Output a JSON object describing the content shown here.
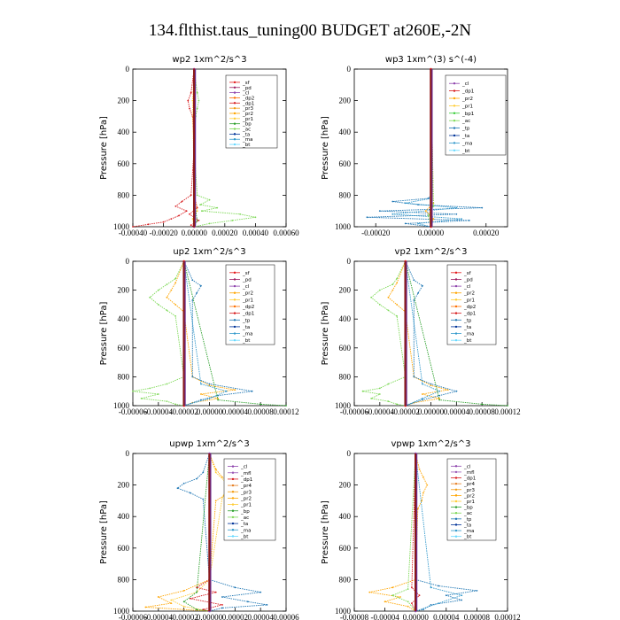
{
  "figure": {
    "title": "134.flthist.taus_tuning00  BUDGET at260E,-2N"
  },
  "colors": {
    "sf": "#e41a1c",
    "pd": "#9e1f63",
    "cl": "#8e44ad",
    "mfl": "#9b59b6",
    "dp1": "#d7191c",
    "dp2": "#ff6f00",
    "pr1": "#ffcc33",
    "pr2": "#ffa500",
    "pr3": "#f39c12",
    "pr4": "#e67e22",
    "bp": "#2ca02c",
    "bp1": "#33cc33",
    "ac": "#7ed957",
    "tp": "#1f77b4",
    "ta": "#003399",
    "ma": "#3399cc",
    "bt": "#66d9ff"
  },
  "chart_data": [
    {
      "type": "line",
      "title": "wp2   1xm^2/s^3",
      "ylabel": "Pressure [hPa]",
      "xlim": [
        -0.0004,
        0.0006
      ],
      "ylim": [
        1000,
        0
      ],
      "xticks": [
        "-0.00040",
        "-0.00020",
        "0.00000",
        "0.00020",
        "0.00040",
        "0.00060"
      ],
      "yticks": [
        "0",
        "200",
        "400",
        "600",
        "800",
        "1000"
      ],
      "legend": [
        "_sf",
        "_pd",
        "_cl",
        "_dp2",
        "_dp1",
        "_pr3",
        "_pr2",
        "_pr1",
        "_bp",
        "_ac",
        "_ta",
        "_ma",
        "_bt"
      ],
      "legend_position": "top-right",
      "series": [
        {
          "key": "ac",
          "p": [
            0,
            150,
            200,
            250,
            300,
            500,
            800,
            830,
            860,
            880,
            900,
            920,
            940,
            960,
            980,
            1000
          ],
          "v": [
            0,
            2e-05,
            3e-05,
            2e-05,
            1e-05,
            0,
            2e-05,
            0.0001,
            4e-05,
            0.00015,
            5e-05,
            0.0003,
            0.0004,
            0.00025,
            0.0001,
            0
          ]
        },
        {
          "key": "dp1",
          "p": [
            0,
            150,
            200,
            250,
            300,
            500,
            800,
            840,
            870,
            900,
            930,
            950,
            970,
            985,
            1000
          ],
          "v": [
            0,
            -2e-05,
            -4e-05,
            -3e-05,
            -1e-05,
            0,
            -2e-05,
            -8e-05,
            -0.00012,
            -5e-05,
            -0.0001,
            -0.00015,
            -0.0002,
            -0.0003,
            -0.0004
          ]
        },
        {
          "key": "sf",
          "p": [
            0,
            800,
            880,
            920,
            960,
            990,
            1000
          ],
          "v": [
            0,
            0,
            2e-05,
            -3e-05,
            3e-05,
            -2e-05,
            0
          ]
        },
        {
          "key": "pr1",
          "p": [
            0,
            200,
            800,
            900,
            950,
            1000
          ],
          "v": [
            0,
            -1e-05,
            0,
            2e-05,
            -1e-05,
            0
          ]
        },
        {
          "key": "bp",
          "p": [
            0,
            800,
            900,
            960,
            1000
          ],
          "v": [
            0,
            0,
            1e-05,
            2e-05,
            0
          ]
        },
        {
          "key": "pd",
          "p": [
            0,
            1000
          ],
          "v": [
            0,
            0
          ]
        }
      ]
    },
    {
      "type": "line",
      "title": "wp3   1xm^(3) s^(-4)",
      "ylabel": "Pressure [hPa]",
      "xlim": [
        -0.0003,
        0.0003
      ],
      "ylim": [
        1000,
        0
      ],
      "xticks": [
        "-0.00020",
        "0.00000",
        "0.00020"
      ],
      "yticks": [
        "0",
        "200",
        "400",
        "600",
        "800",
        "1000"
      ],
      "legend": [
        "_cl",
        "_dp1",
        "_pr2",
        "_pr1",
        "_bp1",
        "_ac",
        "_tp",
        "_ta",
        "_ma",
        "_bt"
      ],
      "legend_position": "top-right",
      "series": [
        {
          "key": "tp",
          "p": [
            0,
            800,
            820,
            840,
            860,
            880,
            900,
            920,
            940,
            960,
            980,
            1000
          ],
          "v": [
            0,
            0,
            -1e-05,
            -0.00015,
            -5e-05,
            0.0002,
            -0.0002,
            0.0001,
            -0.00025,
            0.00015,
            -0.0001,
            0
          ]
        },
        {
          "key": "ma",
          "p": [
            0,
            820,
            850,
            880,
            920,
            950,
            980,
            1000
          ],
          "v": [
            0,
            0,
            -0.0001,
            0.0001,
            -0.00015,
            0.00012,
            -5e-05,
            0
          ]
        },
        {
          "key": "pr2",
          "p": [
            0,
            850,
            900,
            950,
            1000
          ],
          "v": [
            0,
            1e-05,
            -2e-05,
            1e-05,
            0
          ]
        },
        {
          "key": "ac",
          "p": [
            0,
            870,
            930,
            1000
          ],
          "v": [
            0,
            1e-05,
            -1e-05,
            0
          ]
        },
        {
          "key": "dp1",
          "p": [
            0,
            1000
          ],
          "v": [
            0,
            0
          ]
        }
      ]
    },
    {
      "type": "line",
      "title": "up2   1xm^2/s^3",
      "ylabel": "Pressure [hPa]",
      "xlim": [
        -6e-05,
        0.00012
      ],
      "ylim": [
        1000,
        0
      ],
      "xticks": [
        "-0.00006",
        "-0.00004",
        "-0.00002",
        "0.00000",
        "0.00004",
        "0.00008",
        "0.00012"
      ],
      "yticks": [
        "0",
        "200",
        "400",
        "600",
        "800",
        "1000"
      ],
      "legend": [
        "_sf",
        "_pd",
        "_cl",
        "_pr2",
        "_pr1",
        "_dp2",
        "_dp1",
        "_tp",
        "_ta",
        "_ma",
        "_bt"
      ],
      "legend_position": "top-right",
      "series": [
        {
          "key": "ac",
          "p": [
            0,
            120,
            160,
            200,
            250,
            300,
            340,
            380,
            800,
            850,
            880,
            900,
            920,
            950,
            970,
            990,
            1000
          ],
          "v": [
            0,
            -1e-05,
            -2e-05,
            -3e-05,
            -4e-05,
            -3e-05,
            -2e-05,
            -1e-05,
            0,
            -2e-05,
            -4e-05,
            -6e-05,
            -3e-05,
            -5e-05,
            -2e-05,
            -1e-05,
            0
          ]
        },
        {
          "key": "pr2",
          "p": [
            0,
            150,
            200,
            250,
            300,
            350,
            800,
            860,
            890,
            920,
            950,
            980,
            1000
          ],
          "v": [
            0,
            -1e-05,
            -1.5e-05,
            -2e-05,
            -1e-05,
            0,
            1e-05,
            3e-05,
            6e-05,
            2e-05,
            4e-05,
            1e-05,
            0
          ]
        },
        {
          "key": "tp",
          "p": [
            0,
            130,
            170,
            220,
            270,
            800,
            850,
            900,
            930,
            960,
            1000
          ],
          "v": [
            0,
            1e-05,
            2e-05,
            1.5e-05,
            1e-05,
            1e-05,
            3e-05,
            8e-05,
            4e-05,
            2e-05,
            0
          ]
        },
        {
          "key": "ma",
          "p": [
            0,
            850,
            900,
            950,
            1000
          ],
          "v": [
            0,
            2e-05,
            5e-05,
            3e-05,
            0
          ]
        },
        {
          "key": "bp",
          "p": [
            0,
            960,
            990,
            1000
          ],
          "v": [
            0,
            4e-05,
            9e-05,
            0.00012
          ]
        },
        {
          "key": "sf",
          "p": [
            0,
            1000
          ],
          "v": [
            0,
            0
          ]
        }
      ]
    },
    {
      "type": "line",
      "title": "vp2   1xm^2/s^3",
      "ylabel": "Pressure [hPa]",
      "xlim": [
        -6e-05,
        0.00012
      ],
      "ylim": [
        1000,
        0
      ],
      "xticks": [
        "-0.00006",
        "-0.00004",
        "-0.00002",
        "0.00000",
        "0.00004",
        "0.00008",
        "0.00012"
      ],
      "yticks": [
        "0",
        "200",
        "400",
        "600",
        "800",
        "1000"
      ],
      "legend": [
        "_sf",
        "_pd",
        "_cl",
        "_pr2",
        "_pr1",
        "_dp2",
        "_dp1",
        "_tp",
        "_ta",
        "_ma",
        "_bt"
      ],
      "legend_position": "top-right",
      "series": [
        {
          "key": "ac",
          "p": [
            0,
            120,
            160,
            200,
            250,
            300,
            340,
            380,
            800,
            850,
            880,
            900,
            920,
            950,
            970,
            990,
            1000
          ],
          "v": [
            0,
            -1e-05,
            -1.5e-05,
            -3e-05,
            -4e-05,
            -3e-05,
            -2e-05,
            -1e-05,
            0,
            -2e-05,
            -3e-05,
            -5e-05,
            -3e-05,
            -4e-05,
            -2e-05,
            -1e-05,
            0
          ]
        },
        {
          "key": "pr2",
          "p": [
            0,
            150,
            200,
            250,
            300,
            350,
            800,
            860,
            890,
            920,
            950,
            980,
            1000
          ],
          "v": [
            0,
            -1e-05,
            -1.5e-05,
            -2e-05,
            -1e-05,
            0,
            1e-05,
            3e-05,
            5e-05,
            2e-05,
            4e-05,
            1e-05,
            0
          ]
        },
        {
          "key": "tp",
          "p": [
            0,
            130,
            170,
            220,
            270,
            800,
            850,
            900,
            930,
            960,
            1000
          ],
          "v": [
            0,
            1e-05,
            2e-05,
            1.5e-05,
            1e-05,
            1e-05,
            3e-05,
            6e-05,
            4e-05,
            2e-05,
            0
          ]
        },
        {
          "key": "ma",
          "p": [
            0,
            850,
            900,
            950,
            1000
          ],
          "v": [
            0,
            2e-05,
            4e-05,
            2e-05,
            0
          ]
        },
        {
          "key": "bp",
          "p": [
            0,
            960,
            990,
            1000
          ],
          "v": [
            0,
            4e-05,
            9e-05,
            0.00012
          ]
        },
        {
          "key": "sf",
          "p": [
            0,
            1000
          ],
          "v": [
            0,
            0
          ]
        }
      ]
    },
    {
      "type": "line",
      "title": "upwp   1xm^2/s^3",
      "ylabel": "Pressure [hPa]",
      "xlim": [
        -6e-05,
        6e-05
      ],
      "ylim": [
        1000,
        0
      ],
      "xticks": [
        "-0.00006",
        "-0.00004",
        "-0.00002",
        "0.00000",
        "0.00002",
        "0.00004",
        "0.00006"
      ],
      "yticks": [
        "0",
        "200",
        "400",
        "600",
        "800",
        "1000"
      ],
      "legend": [
        "_cl",
        "_mfl",
        "_dp1",
        "_pr4",
        "_pr3",
        "_pr2",
        "_pr1",
        "_bp",
        "_ac",
        "_ta",
        "_ma",
        "_bt"
      ],
      "legend_position": "top-right",
      "series": [
        {
          "key": "tp",
          "p": [
            0,
            120,
            160,
            190,
            220,
            250,
            290,
            800,
            850,
            880,
            910,
            940,
            960,
            980,
            1000
          ],
          "v": [
            0,
            -5e-06,
            -1e-05,
            -2e-05,
            -2.5e-05,
            -1.5e-05,
            -5e-06,
            0,
            2e-05,
            4e-05,
            1e-05,
            3e-05,
            4.5e-05,
            1e-05,
            0
          ]
        },
        {
          "key": "pr2",
          "p": [
            0,
            100,
            150,
            200,
            250,
            300,
            800,
            870,
            910,
            950,
            975,
            1000
          ],
          "v": [
            0,
            5e-06,
            1e-05,
            2e-05,
            1.5e-05,
            5e-06,
            0,
            -2e-05,
            -4e-05,
            -3e-05,
            -5e-05,
            0
          ]
        },
        {
          "key": "pr1",
          "p": [
            0,
            120,
            200,
            280,
            800,
            880,
            930,
            970,
            1000
          ],
          "v": [
            0,
            5e-06,
            1.5e-05,
            1e-05,
            0,
            -1e-05,
            -3e-05,
            -2e-05,
            0
          ]
        },
        {
          "key": "dp1",
          "p": [
            0,
            800,
            850,
            880,
            920,
            960,
            990,
            1000
          ],
          "v": [
            0,
            0,
            -1e-05,
            5e-06,
            -1.5e-05,
            1e-05,
            -5e-06,
            0
          ]
        },
        {
          "key": "bp",
          "p": [
            0,
            880,
            940,
            990,
            1000
          ],
          "v": [
            0,
            -1e-05,
            -2e-05,
            -1e-05,
            0
          ]
        },
        {
          "key": "cl",
          "p": [
            0,
            1000
          ],
          "v": [
            0,
            0
          ]
        }
      ]
    },
    {
      "type": "line",
      "title": "vpwp   1xm^2/s^3",
      "ylabel": "Pressure [hPa]",
      "xlim": [
        -8e-05,
        0.00012
      ],
      "ylim": [
        1000,
        0
      ],
      "xticks": [
        "-0.00008",
        "-0.00004",
        "0.00000",
        "0.00004",
        "0.00008",
        "0.00012"
      ],
      "yticks": [
        "0",
        "200",
        "400",
        "600",
        "800",
        "1000"
      ],
      "legend": [
        "_cl",
        "_mfl",
        "_dp1",
        "_pr4",
        "_pr3",
        "_pr2",
        "_pr1",
        "_bp",
        "_ac",
        "_tp",
        "_ta",
        "_ma",
        "_bt"
      ],
      "legend_position": "top-right",
      "series": [
        {
          "key": "pr2",
          "p": [
            0,
            100,
            150,
            200,
            250,
            300,
            350,
            800,
            850,
            880,
            910,
            940,
            970,
            1000
          ],
          "v": [
            0,
            5e-06,
            1e-05,
            1.5e-05,
            1e-05,
            8e-06,
            3e-06,
            0,
            -3e-05,
            -6e-05,
            -2e-05,
            -4e-05,
            -1e-05,
            0
          ]
        },
        {
          "key": "tp",
          "p": [
            0,
            800,
            840,
            870,
            900,
            930,
            960,
            990,
            1000
          ],
          "v": [
            0,
            0,
            3e-05,
            8e-05,
            4e-05,
            6e-05,
            2e-05,
            1e-05,
            0
          ]
        },
        {
          "key": "ma",
          "p": [
            0,
            850,
            900,
            950,
            1000
          ],
          "v": [
            0,
            2e-05,
            6e-05,
            3e-05,
            0
          ]
        },
        {
          "key": "ac",
          "p": [
            0,
            860,
            900,
            940,
            1000
          ],
          "v": [
            0,
            -1e-05,
            -3e-05,
            -1e-05,
            0
          ]
        },
        {
          "key": "dp1",
          "p": [
            0,
            850,
            900,
            950,
            1000
          ],
          "v": [
            0,
            -5e-06,
            5e-06,
            -5e-06,
            0
          ]
        },
        {
          "key": "cl",
          "p": [
            0,
            1000
          ],
          "v": [
            0,
            0
          ]
        }
      ]
    }
  ]
}
